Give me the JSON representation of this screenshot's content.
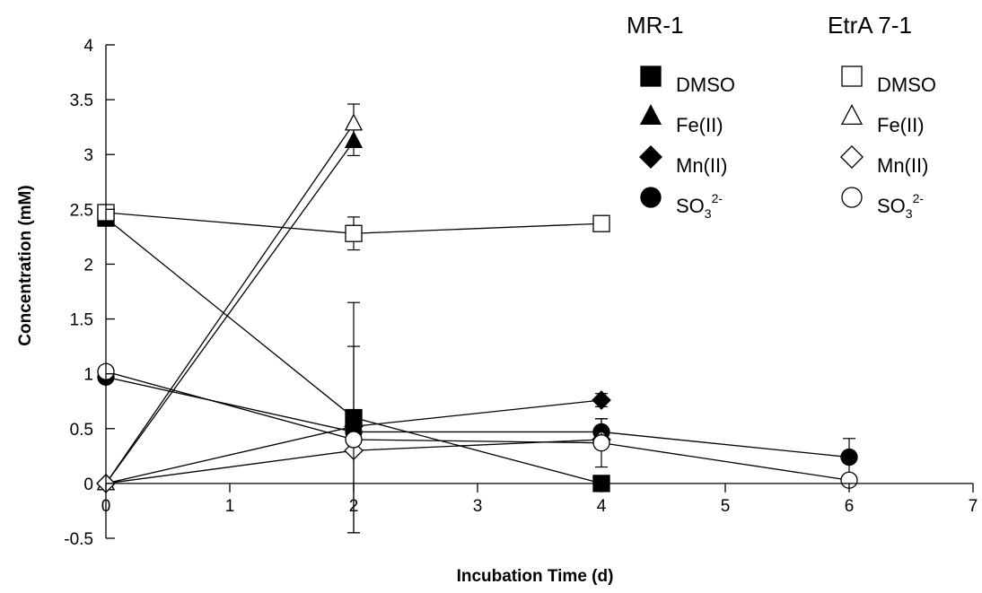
{
  "chart_data": {
    "type": "line",
    "title": "",
    "xlabel": "Incubation Time (d)",
    "ylabel": "Concentration (mM)",
    "xlim": [
      0,
      7
    ],
    "ylim": [
      -0.5,
      4
    ],
    "xticks": [
      "0",
      "1",
      "2",
      "3",
      "4",
      "5",
      "6",
      "7"
    ],
    "yticks": [
      "-0.5",
      "0",
      "0.5",
      "1",
      "1.5",
      "2",
      "2.5",
      "3",
      "3.5",
      "4"
    ],
    "grid": false,
    "legend": {
      "placement": "top-right",
      "groups": [
        {
          "title": "MR-1",
          "entries": [
            "DMSO",
            "Fe(II)",
            "Mn(II)",
            "SO3 2-"
          ]
        },
        {
          "title": "EtrA 7-1",
          "entries": [
            "DMSO",
            "Fe(II)",
            "Mn(II)",
            "SO3 2-"
          ]
        }
      ],
      "sulfite": {
        "base": "SO",
        "sub": "3",
        "sup": "2-"
      }
    },
    "series": [
      {
        "group": "MR-1",
        "label": "DMSO",
        "marker": "square",
        "filled": true,
        "points": [
          {
            "x": 0,
            "y": 2.42
          },
          {
            "x": 2,
            "y": 0.6,
            "err": 1.05
          },
          {
            "x": 4,
            "y": 0
          }
        ]
      },
      {
        "group": "MR-1",
        "label": "Fe(II)",
        "marker": "triangle",
        "filled": true,
        "points": [
          {
            "x": 0,
            "y": 0
          },
          {
            "x": 2,
            "y": 3.12,
            "err": 0.13
          }
        ]
      },
      {
        "group": "MR-1",
        "label": "Mn(II)",
        "marker": "diamond",
        "filled": true,
        "points": [
          {
            "x": 0,
            "y": 0
          },
          {
            "x": 2,
            "y": 0.52
          },
          {
            "x": 4,
            "y": 0.76,
            "err": 0.06
          }
        ]
      },
      {
        "group": "MR-1",
        "label": "SO3 2-",
        "marker": "circle",
        "filled": true,
        "points": [
          {
            "x": 0,
            "y": 0.97
          },
          {
            "x": 2,
            "y": 0.47
          },
          {
            "x": 4,
            "y": 0.47,
            "err": 0.12
          },
          {
            "x": 6,
            "y": 0.24,
            "err": 0.17
          }
        ]
      },
      {
        "group": "EtrA 7-1",
        "label": "DMSO",
        "marker": "square",
        "filled": false,
        "points": [
          {
            "x": 0,
            "y": 2.47
          },
          {
            "x": 2,
            "y": 2.28,
            "err": 0.15
          },
          {
            "x": 4,
            "y": 2.37
          }
        ]
      },
      {
        "group": "EtrA 7-1",
        "label": "Fe(II)",
        "marker": "triangle",
        "filled": false,
        "points": [
          {
            "x": 0,
            "y": 0
          },
          {
            "x": 2,
            "y": 3.28,
            "err": 0.18
          }
        ]
      },
      {
        "group": "EtrA 7-1",
        "label": "Mn(II)",
        "marker": "diamond",
        "filled": false,
        "points": [
          {
            "x": 0,
            "y": 0
          },
          {
            "x": 2,
            "y": 0.3
          },
          {
            "x": 4,
            "y": 0.4
          }
        ]
      },
      {
        "group": "EtrA 7-1",
        "label": "SO3 2-",
        "marker": "circle",
        "filled": false,
        "points": [
          {
            "x": 0,
            "y": 1.02
          },
          {
            "x": 2,
            "y": 0.4,
            "err": 0.85
          },
          {
            "x": 4,
            "y": 0.37,
            "err": 0.22
          },
          {
            "x": 6,
            "y": 0.03
          }
        ]
      }
    ]
  }
}
